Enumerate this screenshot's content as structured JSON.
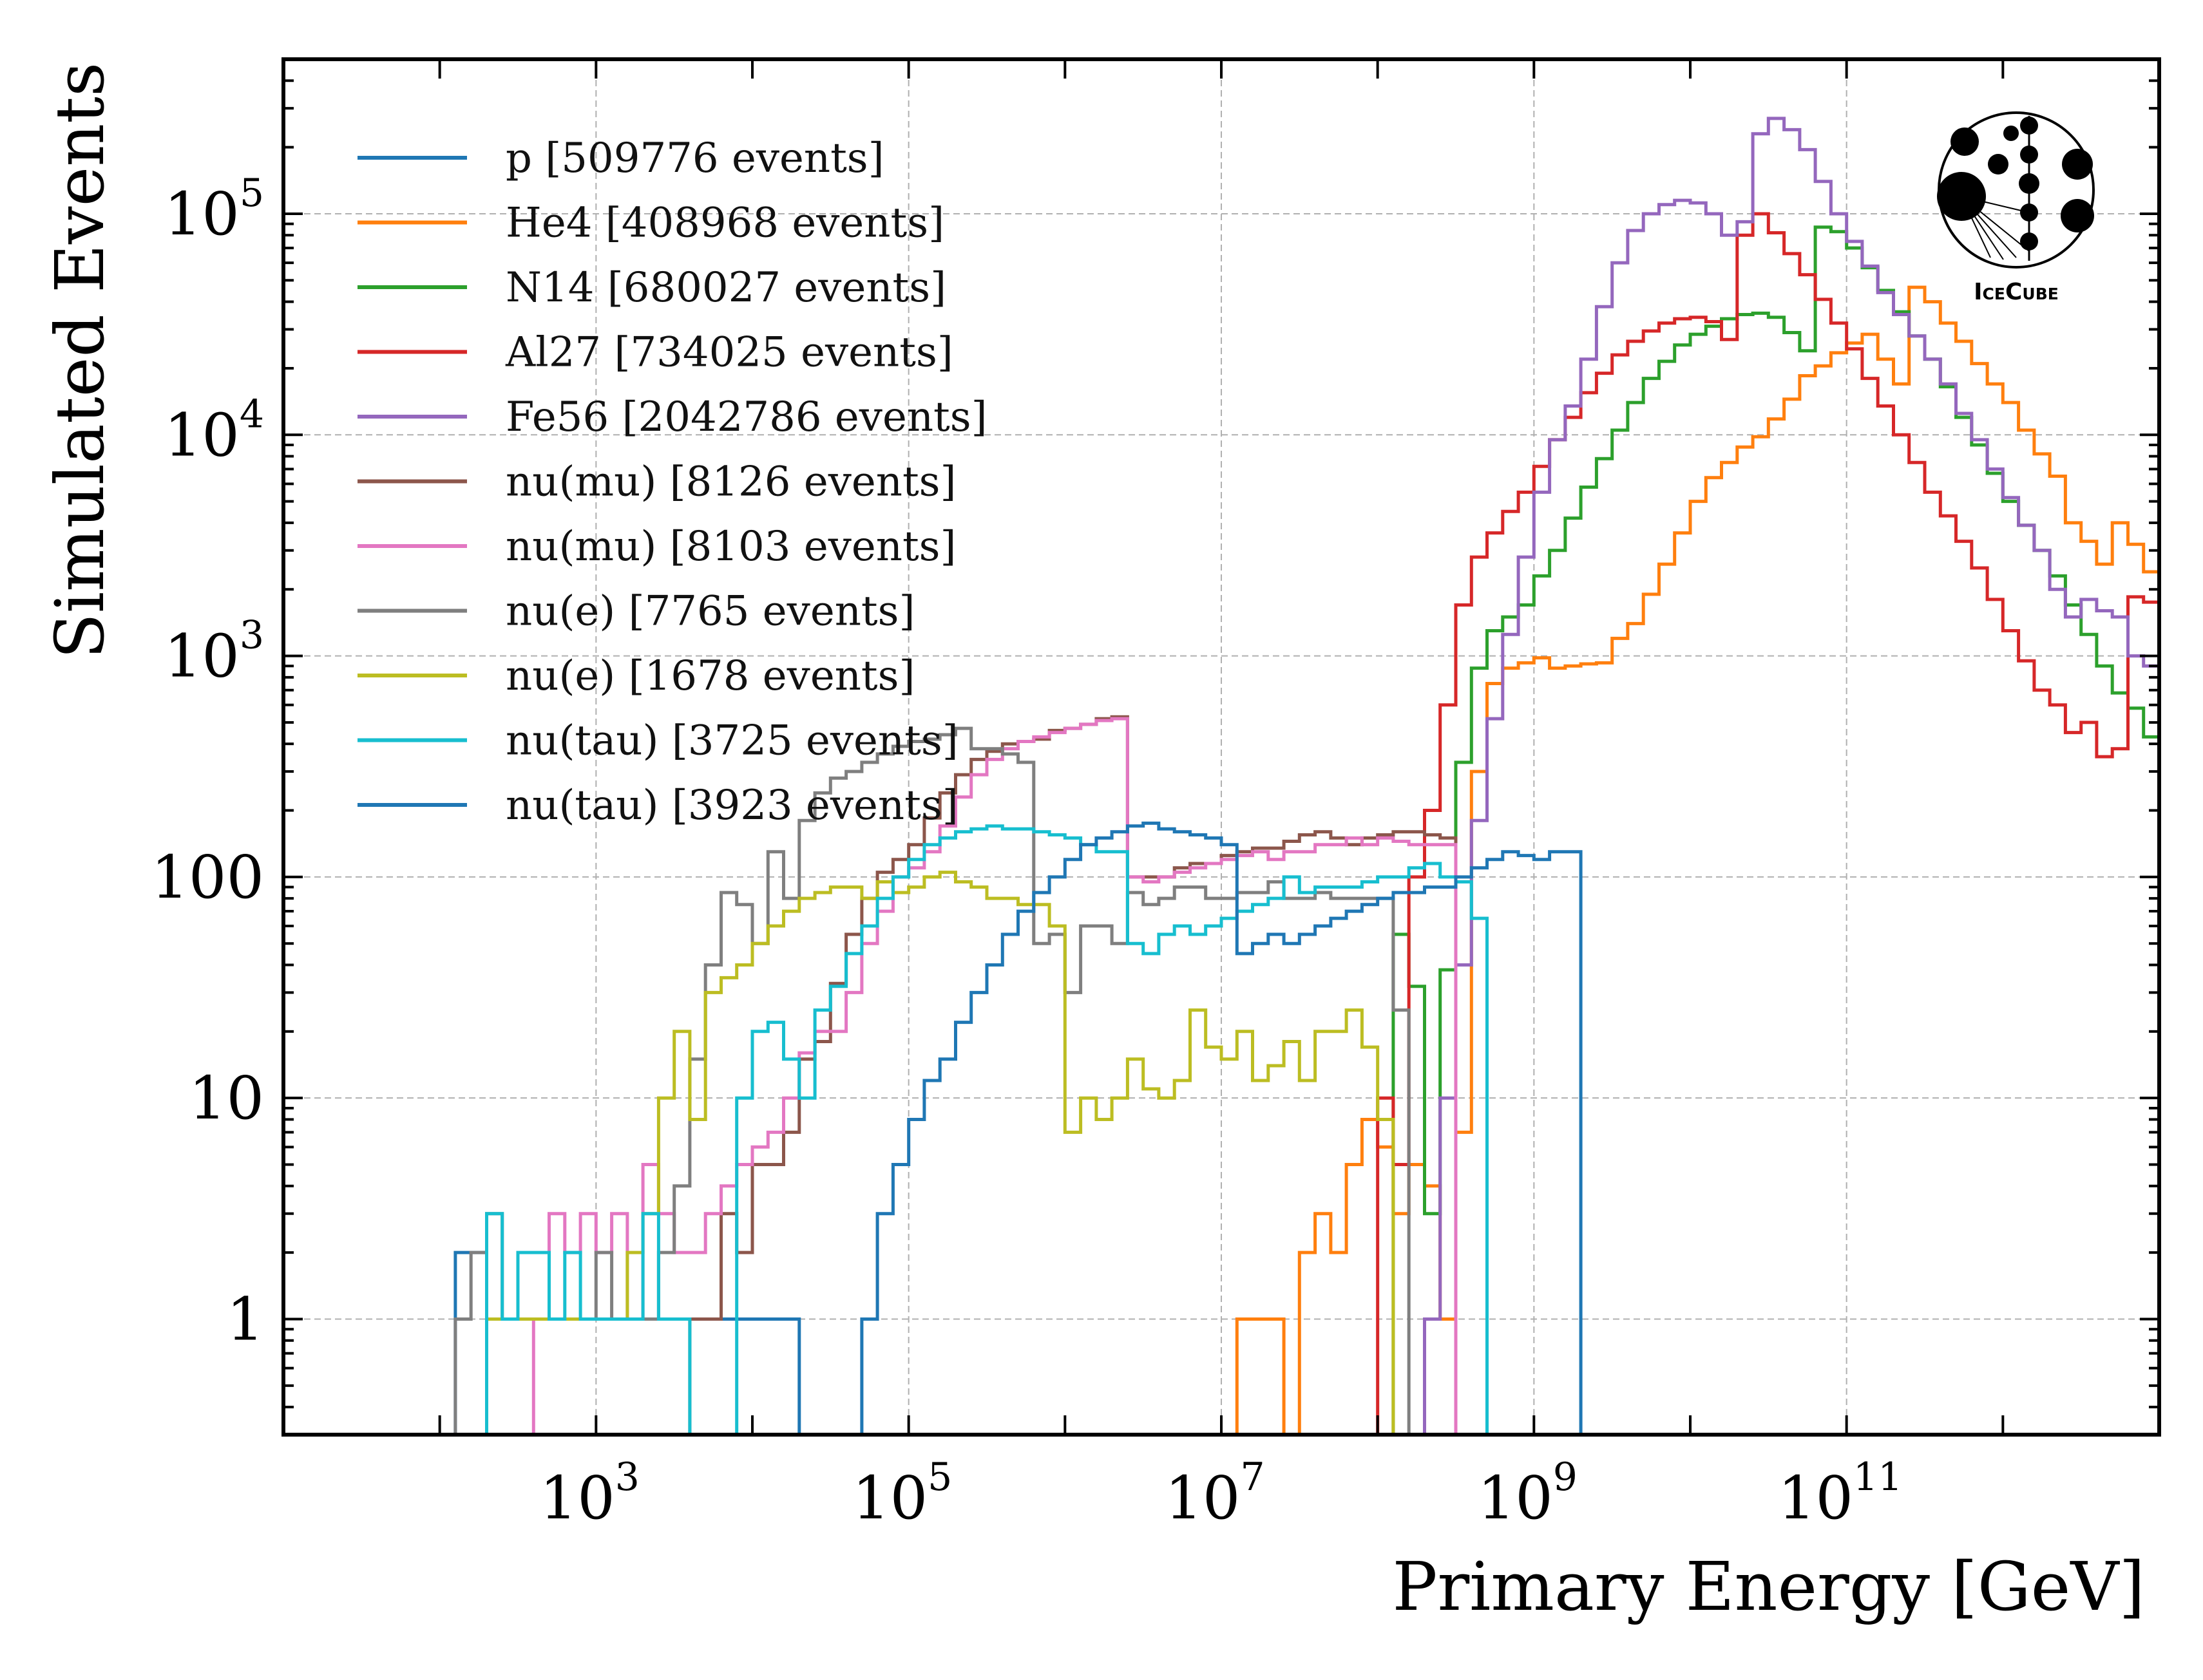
{
  "chart_data": {
    "type": "line",
    "subtype": "histogram-step",
    "xlabel": "Primary Energy [GeV]",
    "ylabel": "Simulated Events",
    "xscale": "log",
    "yscale": "log",
    "xlim": [
      10,
      10000000000000
    ],
    "ylim": [
      0.3,
      500000
    ],
    "x_ticks": [
      {
        "base": "10",
        "exp": "3",
        "value": 1000
      },
      {
        "base": "10",
        "exp": "5",
        "value": 100000
      },
      {
        "base": "10",
        "exp": "7",
        "value": 10000000
      },
      {
        "base": "10",
        "exp": "9",
        "value": 1000000000
      },
      {
        "base": "10",
        "exp": "11",
        "value": 100000000000
      }
    ],
    "y_ticks": [
      {
        "text": "1",
        "base": "",
        "exp": "",
        "value": 1
      },
      {
        "text": "10",
        "base": "",
        "exp": "",
        "value": 10
      },
      {
        "text": "100",
        "base": "",
        "exp": "",
        "value": 100
      },
      {
        "text": "",
        "base": "10",
        "exp": "3",
        "value": 1000
      },
      {
        "text": "",
        "base": "10",
        "exp": "4",
        "value": 10000
      },
      {
        "text": "",
        "base": "10",
        "exp": "5",
        "value": 100000
      }
    ],
    "grid": true,
    "legend_position": "top-left",
    "logo_text": "IceCube",
    "bin_edges_log10": {
      "start": 2.0,
      "step": 0.1
    },
    "series": [
      {
        "name": "p [509776 events]",
        "color": "#1f77b4",
        "start_bin": 1,
        "values": [
          2,
          2,
          1,
          1,
          1,
          1,
          1,
          1,
          1,
          1,
          1,
          1,
          1,
          1,
          1,
          1,
          1,
          1,
          1,
          1,
          1,
          1,
          0,
          0,
          0,
          0,
          0,
          0,
          0,
          0,
          0,
          0,
          0,
          0,
          0,
          0,
          0,
          0,
          0,
          0,
          0,
          0,
          0,
          0,
          0,
          0,
          0,
          0,
          0,
          0,
          0,
          0,
          0,
          0,
          0,
          0,
          0,
          0,
          0,
          0,
          0,
          0,
          0,
          0,
          0,
          0,
          0,
          0,
          0,
          0,
          0,
          0,
          0,
          0,
          0,
          0,
          0,
          0,
          0,
          0,
          0,
          0,
          0,
          0,
          0,
          0,
          0,
          0,
          0,
          0,
          0,
          0,
          0,
          0,
          0,
          0,
          0,
          0,
          0,
          0,
          0,
          0,
          0,
          0,
          0,
          0,
          0,
          0,
          0,
          0,
          0,
          0,
          0,
          0,
          0,
          0,
          0,
          0,
          0,
          0,
          0,
          0,
          0,
          0,
          0,
          0,
          0,
          0
        ]
      },
      {
        "name": "He4 [408968 events]",
        "color": "#ff7f0e",
        "start_bin": 51,
        "values": [
          1,
          1,
          1,
          0,
          2,
          3,
          2,
          5,
          8,
          6,
          3,
          5,
          4,
          1,
          7,
          300,
          750,
          880,
          930,
          980,
          880,
          900,
          920,
          930,
          1200,
          1400,
          1900,
          2600,
          3600,
          5000,
          6400,
          7500,
          8800,
          9800,
          11800,
          14500,
          18500,
          20500,
          23500,
          26000,
          28500,
          22000,
          17000,
          46500,
          40000,
          32000,
          26500,
          21000,
          17000,
          14000,
          10500,
          8200,
          6500,
          4000,
          3300,
          2600,
          4000,
          3200,
          2400,
          1700,
          1250,
          900,
          680,
          580,
          430,
          480,
          330,
          360,
          1800,
          1700,
          1500,
          900,
          850,
          720,
          520,
          390,
          240,
          135,
          70,
          45,
          25,
          8,
          3
        ]
      },
      {
        "name": "N14 [680027 events]",
        "color": "#2ca02c",
        "start_bin": 61,
        "values": [
          55,
          32,
          3,
          38,
          330,
          880,
          1300,
          1500,
          1700,
          2300,
          3000,
          4200,
          5800,
          7800,
          10500,
          14000,
          18000,
          21500,
          25500,
          28500,
          31000,
          33500,
          35000,
          35500,
          34000,
          29000,
          24000,
          87000,
          83000,
          70000,
          57000,
          45000,
          36000,
          28000,
          22000,
          16500,
          12000,
          9000,
          6700,
          5000,
          3900,
          3000,
          2300,
          1700,
          1250,
          900,
          680,
          580,
          430,
          480,
          330,
          360,
          1800,
          1700,
          1500,
          900,
          850,
          720,
          520,
          390,
          240,
          135,
          70,
          45,
          25,
          8,
          3
        ]
      },
      {
        "name": "Al27 [734025 events]",
        "color": "#d62728",
        "start_bin": 60,
        "values": [
          10,
          5,
          100,
          200,
          600,
          1700,
          2800,
          3600,
          4500,
          5500,
          7200,
          9500,
          12000,
          15500,
          19000,
          23000,
          26500,
          29500,
          32000,
          33500,
          34000,
          32500,
          27000,
          80000,
          100000,
          82000,
          66000,
          53000,
          41000,
          32000,
          24500,
          18000,
          13500,
          10000,
          7500,
          5500,
          4300,
          3300,
          2500,
          1800,
          1300,
          950,
          700,
          600,
          450,
          500,
          350,
          380,
          1850,
          1750,
          1550,
          950,
          880,
          750,
          540,
          400,
          250,
          140,
          72,
          45,
          25,
          8,
          3
        ]
      },
      {
        "name": "Fe56 [2042786 events]",
        "color": "#9467bd",
        "start_bin": 63,
        "values": [
          1,
          10,
          40,
          180,
          520,
          1250,
          2800,
          5500,
          9500,
          13500,
          22000,
          38000,
          60000,
          84000,
          100000,
          110000,
          115000,
          112000,
          100000,
          80000,
          92000,
          230000,
          270000,
          240000,
          195000,
          140000,
          100000,
          75000,
          58000,
          44000,
          35000,
          28000,
          22000,
          17000,
          12500,
          9500,
          7000,
          5200,
          3900,
          3000,
          2000,
          1500,
          1800,
          1600,
          1500,
          1000,
          900,
          750,
          530,
          420,
          260,
          150,
          68,
          25,
          4,
          1
        ]
      },
      {
        "name": "nu(mu) [8126 events]",
        "color": "#8c564b",
        "start_bin": 16,
        "values": [
          1,
          1,
          3,
          2,
          5,
          5,
          7,
          15,
          18,
          33,
          55,
          80,
          105,
          120,
          140,
          185,
          240,
          290,
          340,
          370,
          400,
          410,
          420,
          460,
          470,
          490,
          520,
          530,
          100,
          100,
          100,
          110,
          115,
          115,
          125,
          130,
          135,
          135,
          145,
          155,
          160,
          150,
          140,
          150,
          155,
          160,
          160,
          155,
          150
        ]
      },
      {
        "name": "nu(mu)  [8103 events]",
        "color": "#e377c2",
        "start_bin": 6,
        "values": [
          1,
          3,
          2,
          3,
          2,
          3,
          1,
          5,
          3,
          2,
          2,
          3,
          4,
          5,
          6,
          7,
          10,
          16,
          20,
          20,
          30,
          50,
          70,
          100,
          110,
          130,
          170,
          230,
          290,
          340,
          380,
          410,
          430,
          450,
          470,
          490,
          510,
          520,
          100,
          95,
          100,
          105,
          110,
          115,
          120,
          125,
          130,
          120,
          130,
          130,
          140,
          140,
          150,
          140,
          150,
          145,
          140,
          140,
          140
        ]
      },
      {
        "name": "nu(e) [7765 events]",
        "color": "#7f7f7f",
        "start_bin": 1,
        "values": [
          1,
          2,
          3,
          1,
          1,
          1,
          1,
          1,
          1,
          2,
          1,
          1,
          1,
          2,
          4,
          15,
          40,
          85,
          75,
          50,
          130,
          80,
          180,
          240,
          280,
          300,
          330,
          360,
          390,
          410,
          420,
          440,
          470,
          380,
          380,
          360,
          330,
          50,
          55,
          30,
          60,
          60,
          50,
          85,
          75,
          80,
          90,
          90,
          80,
          80,
          85,
          85,
          95,
          80,
          80,
          85,
          80,
          80,
          80,
          80,
          25
        ]
      },
      {
        "name": "nu(e)  [1678 events]",
        "color": "#bcbd22",
        "start_bin": 3,
        "values": [
          1,
          1,
          1,
          1,
          1,
          1,
          1,
          1,
          1,
          2,
          3,
          10,
          20,
          8,
          30,
          35,
          40,
          50,
          60,
          70,
          80,
          85,
          90,
          90,
          80,
          95,
          85,
          90,
          100,
          105,
          95,
          90,
          80,
          80,
          75,
          75,
          60,
          7,
          10,
          8,
          10,
          15,
          11,
          10,
          12,
          25,
          17,
          15,
          20,
          12,
          14,
          18,
          12,
          20,
          20,
          25,
          17,
          8
        ]
      },
      {
        "name": "nu(tau) [3725 events]",
        "color": "#17becf",
        "start_bin": 3,
        "values": [
          3,
          1,
          2,
          2,
          1,
          2,
          1,
          1,
          1,
          1,
          3,
          1,
          1,
          0,
          0,
          0,
          10,
          20,
          22,
          15,
          10,
          25,
          32,
          45,
          60,
          80,
          100,
          120,
          140,
          150,
          160,
          165,
          170,
          165,
          165,
          160,
          155,
          150,
          140,
          130,
          130,
          50,
          45,
          55,
          60,
          55,
          60,
          65,
          70,
          75,
          80,
          100,
          85,
          90,
          90,
          90,
          95,
          100,
          100,
          110,
          115,
          100,
          95,
          65
        ]
      },
      {
        "name": "nu(tau)  [3923 events]",
        "color": "#1f77b4",
        "start_bin": 27,
        "values": [
          1,
          3,
          5,
          8,
          12,
          15,
          22,
          30,
          40,
          55,
          70,
          85,
          100,
          120,
          140,
          150,
          160,
          170,
          175,
          165,
          160,
          155,
          150,
          140,
          45,
          50,
          55,
          50,
          55,
          60,
          65,
          70,
          75,
          80,
          85,
          85,
          90,
          90,
          100,
          110,
          120,
          130,
          125,
          120,
          130,
          130
        ]
      }
    ]
  }
}
